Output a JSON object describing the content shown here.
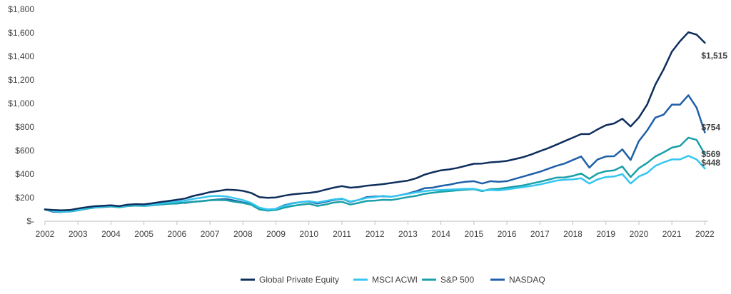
{
  "chart_data": {
    "type": "line",
    "title": "",
    "xlabel": "",
    "ylabel": "",
    "xlim": [
      2002,
      2022.1
    ],
    "ylim": [
      0,
      1800
    ],
    "x_ticks": [
      2002,
      2003,
      2004,
      2005,
      2006,
      2007,
      2008,
      2009,
      2010,
      2011,
      2012,
      2013,
      2014,
      2015,
      2016,
      2017,
      2018,
      2019,
      2020,
      2021,
      2022
    ],
    "x_tick_labels": [
      "2002",
      "2003",
      "2004",
      "2005",
      "2006",
      "2007",
      "2008",
      "2009",
      "2010",
      "2011",
      "2012",
      "2013",
      "2014",
      "2015",
      "2016",
      "2017",
      "2018",
      "2019",
      "2020",
      "2021",
      "2022"
    ],
    "y_ticks": [
      0,
      200,
      400,
      600,
      800,
      1000,
      1200,
      1400,
      1600,
      1800
    ],
    "y_tick_labels": [
      "$-",
      "$200",
      "$400",
      "$600",
      "$800",
      "$1,000",
      "$1,200",
      "$1,400",
      "$1,600",
      "$1,800"
    ],
    "grid": false,
    "legend_position": "bottom-center",
    "x": [
      2002.0,
      2002.25,
      2002.5,
      2002.75,
      2003.0,
      2003.25,
      2003.5,
      2003.75,
      2004.0,
      2004.25,
      2004.5,
      2004.75,
      2005.0,
      2005.25,
      2005.5,
      2005.75,
      2006.0,
      2006.25,
      2006.5,
      2006.75,
      2007.0,
      2007.25,
      2007.5,
      2007.75,
      2008.0,
      2008.25,
      2008.5,
      2008.75,
      2009.0,
      2009.25,
      2009.5,
      2009.75,
      2010.0,
      2010.25,
      2010.5,
      2010.75,
      2011.0,
      2011.25,
      2011.5,
      2011.75,
      2012.0,
      2012.25,
      2012.5,
      2012.75,
      2013.0,
      2013.25,
      2013.5,
      2013.75,
      2014.0,
      2014.25,
      2014.5,
      2014.75,
      2015.0,
      2015.25,
      2015.5,
      2015.75,
      2016.0,
      2016.25,
      2016.5,
      2016.75,
      2017.0,
      2017.25,
      2017.5,
      2017.75,
      2018.0,
      2018.25,
      2018.5,
      2018.75,
      2019.0,
      2019.25,
      2019.5,
      2019.75,
      2020.0,
      2020.25,
      2020.5,
      2020.75,
      2021.0,
      2021.25,
      2021.5,
      2021.75,
      2022.0
    ],
    "series": [
      {
        "name": "Global Private Equity",
        "color": "#0e2e5c",
        "values": [
          100,
          95,
          93,
          95,
          108,
          118,
          127,
          131,
          135,
          128,
          140,
          145,
          143,
          152,
          163,
          172,
          182,
          193,
          215,
          230,
          247,
          257,
          268,
          265,
          258,
          240,
          205,
          198,
          202,
          217,
          228,
          235,
          240,
          250,
          268,
          285,
          298,
          285,
          290,
          302,
          308,
          315,
          325,
          335,
          345,
          365,
          395,
          415,
          432,
          440,
          453,
          470,
          488,
          490,
          500,
          505,
          512,
          528,
          545,
          568,
          595,
          620,
          650,
          680,
          710,
          740,
          740,
          780,
          815,
          830,
          870,
          805,
          880,
          990,
          1160,
          1290,
          1440,
          1530,
          1605,
          1585,
          1515
        ]
      },
      {
        "name": "MSCI ACWI",
        "color": "#34c6f0",
        "values": [
          100,
          86,
          82,
          85,
          97,
          110,
          118,
          125,
          130,
          122,
          132,
          138,
          133,
          140,
          150,
          158,
          165,
          175,
          190,
          200,
          212,
          215,
          210,
          195,
          180,
          155,
          115,
          100,
          105,
          130,
          150,
          162,
          170,
          158,
          172,
          185,
          192,
          168,
          180,
          198,
          205,
          215,
          208,
          220,
          232,
          245,
          255,
          262,
          265,
          268,
          272,
          275,
          275,
          260,
          265,
          262,
          270,
          280,
          290,
          300,
          312,
          328,
          345,
          352,
          355,
          365,
          320,
          355,
          375,
          380,
          400,
          320,
          380,
          410,
          470,
          500,
          525,
          525,
          555,
          525,
          448
        ]
      },
      {
        "name": "S&P 500",
        "color": "#1a9fa8",
        "values": [
          100,
          85,
          80,
          82,
          92,
          105,
          115,
          120,
          125,
          118,
          128,
          133,
          130,
          135,
          142,
          148,
          150,
          158,
          165,
          170,
          178,
          180,
          178,
          165,
          155,
          140,
          100,
          90,
          95,
          115,
          130,
          140,
          148,
          130,
          142,
          158,
          165,
          142,
          155,
          172,
          175,
          182,
          180,
          192,
          205,
          215,
          232,
          242,
          250,
          256,
          262,
          268,
          272,
          255,
          272,
          275,
          285,
          295,
          305,
          320,
          335,
          352,
          370,
          372,
          385,
          405,
          360,
          405,
          425,
          432,
          465,
          375,
          450,
          495,
          550,
          585,
          625,
          640,
          710,
          690,
          569
        ]
      },
      {
        "name": "NASDAQ",
        "color": "#1f5fa8",
        "values": [
          100,
          80,
          78,
          88,
          100,
          115,
          125,
          130,
          135,
          125,
          138,
          140,
          132,
          138,
          148,
          155,
          160,
          155,
          165,
          170,
          178,
          185,
          188,
          175,
          160,
          145,
          105,
          95,
          105,
          135,
          152,
          162,
          168,
          150,
          165,
          180,
          190,
          165,
          180,
          205,
          210,
          212,
          208,
          220,
          235,
          255,
          280,
          285,
          300,
          310,
          325,
          335,
          340,
          320,
          340,
          335,
          340,
          360,
          380,
          400,
          420,
          445,
          470,
          490,
          520,
          550,
          455,
          525,
          550,
          552,
          610,
          520,
          680,
          770,
          880,
          905,
          990,
          990,
          1070,
          965,
          754
        ]
      }
    ],
    "end_labels": [
      {
        "series": "Global Private Equity",
        "text": "$1,515",
        "value": 1515
      },
      {
        "series": "NASDAQ",
        "text": "$754",
        "value": 754
      },
      {
        "series": "S&P 500",
        "text": "$569",
        "value": 569
      },
      {
        "series": "MSCI ACWI",
        "text": "$448",
        "value": 448
      }
    ]
  }
}
